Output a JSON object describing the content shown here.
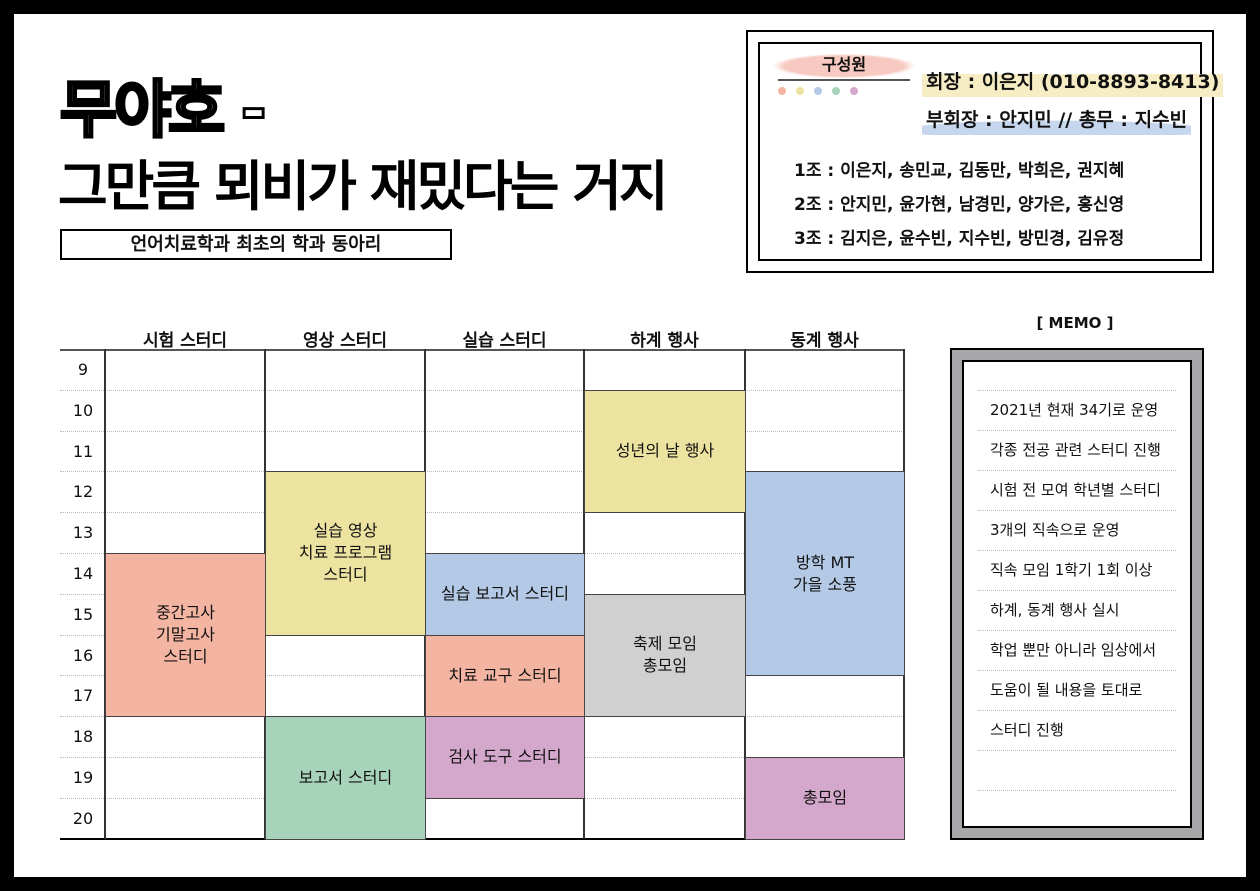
{
  "header": {
    "title_line1": "무야호 -",
    "title_line2": "그만큼 뫼비가 재밌다는 거지",
    "subtitle": "언어치료학과 최초의 학과 동아리"
  },
  "members": {
    "label": "구성원",
    "dot_colors": [
      "#f4b4a2",
      "#ede3a1",
      "#b3c9e6",
      "#a8d3bb",
      "#d4a8cc"
    ],
    "president": "회장 : 이은지 (010-8893-8413)",
    "vice_and_treasurer": "부회장 : 안지민 // 총무 : 지수빈",
    "teams": [
      "1조 : 이은지, 송민교, 김동만, 박희은, 권지혜",
      "2조 : 안지민, 윤가현, 남경민, 양가은, 홍신영",
      "3조 : 김지은, 윤수빈, 지수빈, 방민경, 김유정"
    ]
  },
  "schedule": {
    "columns": [
      "시험 스터디",
      "영상 스터디",
      "실습 스터디",
      "하계 행사",
      "동계 행사"
    ],
    "hours": [
      "9",
      "10",
      "11",
      "12",
      "13",
      "14",
      "15",
      "16",
      "17",
      "18",
      "19",
      "20"
    ],
    "blocks": [
      {
        "column": 0,
        "start": 14,
        "end": 18,
        "label": "중간고사\n기말고사\n스터디",
        "color": "#f4b4a2"
      },
      {
        "column": 1,
        "start": 12,
        "end": 16,
        "label": "실습 영상\n치료 프로그램\n스터디",
        "color": "#ede3a1"
      },
      {
        "column": 1,
        "start": 18,
        "end": 21,
        "label": "보고서 스터디",
        "color": "#a8d3bb"
      },
      {
        "column": 2,
        "start": 14,
        "end": 16,
        "label": "실습 보고서 스터디",
        "color": "#b3c9e6"
      },
      {
        "column": 2,
        "start": 16,
        "end": 18,
        "label": "치료 교구 스터디",
        "color": "#f4b4a2"
      },
      {
        "column": 2,
        "start": 18,
        "end": 20,
        "label": "검사 도구 스터디",
        "color": "#d4a8cc"
      },
      {
        "column": 3,
        "start": 10,
        "end": 13,
        "label": "성년의 날 행사",
        "color": "#ede3a1"
      },
      {
        "column": 3,
        "start": 15,
        "end": 18,
        "label": "축제 모임\n총모임",
        "color": "#d0d0d0"
      },
      {
        "column": 4,
        "start": 12,
        "end": 17,
        "label": "방학 MT\n가을 소풍",
        "color": "#b3c9e6"
      },
      {
        "column": 4,
        "start": 19,
        "end": 21,
        "label": "총모임",
        "color": "#d4a8cc"
      }
    ]
  },
  "memo": {
    "title": "[ MEMO ]",
    "lines": [
      "2021년 현재 34기로 운영",
      "각종 전공 관련 스터디 진행",
      "시험 전 모여 학년별 스터디",
      "3개의 직속으로 운영",
      "직속 모임 1학기 1회 이상",
      "하계, 동계 행사 실시",
      "학업 뿐만 아니라 임상에서",
      "도움이 될 내용을 토대로",
      "스터디 진행"
    ]
  }
}
